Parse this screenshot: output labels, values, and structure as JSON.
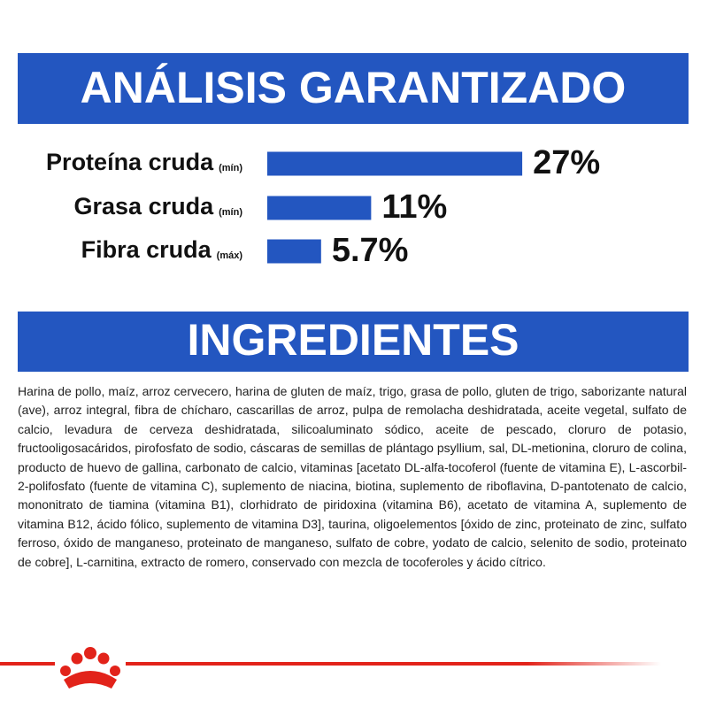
{
  "chart_data": {
    "type": "hbar",
    "title": "ANÁLISIS GARANTIZADO",
    "categories": [
      "Proteína cruda",
      "Grasa cruda",
      "Fibra cruda"
    ],
    "qualifiers": [
      "(mín)",
      "(mín)",
      "(máx)"
    ],
    "values": [
      27,
      11,
      5.7
    ],
    "value_labels": [
      "27%",
      "11%",
      "5.7%"
    ],
    "color": "#2356c0"
  },
  "ingredients": {
    "title": "INGREDIENTES",
    "text": "Harina de pollo, maíz, arroz cervecero, harina de gluten de maíz, trigo, grasa de pollo, gluten de trigo, saborizante natural (ave), arroz integral, fibra de chícharo, cascarillas de arroz, pulpa de remolacha deshidratada, aceite vegetal, sulfato de calcio, levadura de cerveza deshidratada, silicoaluminato sódico, aceite de pescado, cloruro de potasio, fructooligosacáridos, pirofosfato de sodio, cáscaras de semillas de plántago psyllium, sal, DL-metionina, cloruro de colina, producto de huevo de gallina, carbonato de calcio, vitaminas [acetato DL-alfa-tocoferol (fuente de vitamina E), L-ascorbil-2-polifosfato (fuente de vitamina C), suplemento de niacina, biotina, suplemento de riboflavina, D-pantotenato de calcio, mononitrato de tiamina (vitamina B1), clorhidrato de piridoxina (vitamina B6), acetato de vitamina A, suplemento de vitamina B12, ácido fólico, suplemento de vitamina D3], taurina, oligoelementos [óxido de zinc, proteinato de zinc, sulfato ferroso, óxido de manganeso, proteinato de manganeso, sulfato de cobre, yodato de calcio, selenito de sodio, proteinato de cobre], L-carnitina, extracto de romero, conservado con mezcla de tocoferoles y ácido cítrico."
  }
}
